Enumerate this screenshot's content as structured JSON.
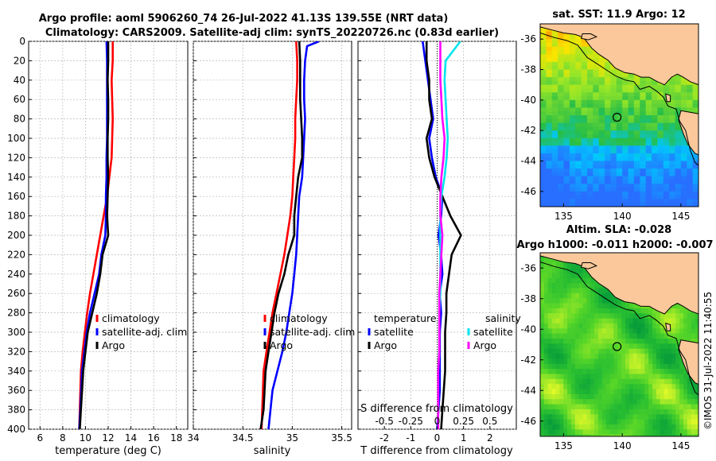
{
  "header": {
    "title_line1": "Argo profile: aoml 5906260_74 26-Jul-2022 41.13S 139.55E (NRT data)",
    "title_line2": "Climatology: CARS2009. Satellite-adj clim: synTS_20220726.nc (0.83d earlier)"
  },
  "stamp": "©IMOS 31-Jul-2022 11:40:55",
  "colors": {
    "climatology": "#ff0000",
    "satellite": "#0000ff",
    "argo": "#000000",
    "sal_satellite": "#00e5ee",
    "sal_argo": "#ff00ff",
    "ocean_land": "#fac89a"
  },
  "chart_data": [
    {
      "type": "line",
      "id": "temperature",
      "xlabel": "temperature (deg C)",
      "ylabel": "",
      "xlim": [
        5,
        19
      ],
      "ylim": [
        0,
        400
      ],
      "y_reversed": true,
      "xticks": [
        6,
        8,
        10,
        12,
        14,
        16,
        18
      ],
      "yticks": [
        0,
        20,
        40,
        60,
        80,
        100,
        120,
        140,
        160,
        180,
        200,
        220,
        240,
        260,
        280,
        300,
        320,
        340,
        360,
        380,
        400
      ],
      "legend": [
        "climatology",
        "satellite-adj. clim",
        "Argo"
      ],
      "series": [
        {
          "name": "climatology",
          "color": "#ff0000",
          "x": [
            12.4,
            12.4,
            12.3,
            12.35,
            12.4,
            12.35,
            12.3,
            12.1,
            11.9,
            11.6,
            11.3,
            11.0,
            10.7,
            10.4,
            10.15,
            9.95,
            9.75,
            9.6,
            9.45
          ],
          "y": [
            0,
            20,
            40,
            60,
            80,
            100,
            120,
            140,
            160,
            180,
            200,
            220,
            240,
            260,
            280,
            300,
            320,
            340,
            400
          ]
        },
        {
          "name": "satellite-adj. clim",
          "color": "#0000ff",
          "x": [
            11.85,
            11.9,
            11.9,
            11.9,
            11.9,
            11.9,
            11.85,
            11.85,
            11.8,
            11.8,
            11.75,
            11.4,
            11.2,
            10.8,
            10.4,
            10.1,
            9.9,
            9.7,
            9.55,
            9.45
          ],
          "y": [
            0,
            20,
            40,
            60,
            80,
            100,
            120,
            140,
            160,
            180,
            200,
            220,
            240,
            260,
            280,
            300,
            320,
            340,
            380,
            400
          ]
        },
        {
          "name": "Argo",
          "color": "#000000",
          "x": [
            12.0,
            12.0,
            11.95,
            12.0,
            12.0,
            11.95,
            11.95,
            12.0,
            11.95,
            11.9,
            12.0,
            11.5,
            11.3,
            11.0,
            10.6,
            10.2,
            10.0,
            9.8,
            9.6,
            9.5
          ],
          "y": [
            0,
            20,
            40,
            60,
            80,
            100,
            120,
            140,
            160,
            180,
            200,
            220,
            240,
            260,
            280,
            300,
            320,
            340,
            380,
            400
          ]
        }
      ]
    },
    {
      "type": "line",
      "id": "salinity",
      "xlabel": "salinity",
      "ylabel": "",
      "xlim": [
        34,
        35.6
      ],
      "ylim": [
        0,
        400
      ],
      "y_reversed": true,
      "xticks": [
        34,
        34.5,
        35,
        35.5
      ],
      "yticks": [
        0,
        20,
        40,
        60,
        80,
        100,
        120,
        140,
        160,
        180,
        200,
        220,
        240,
        260,
        280,
        300,
        320,
        340,
        360,
        380,
        400
      ],
      "legend": [
        "climatology",
        "satellite-adj. clim",
        "Argo"
      ],
      "series": [
        {
          "name": "climatology",
          "color": "#ff0000",
          "x": [
            35.04,
            35.05,
            35.05,
            35.04,
            35.03,
            35.03,
            35.02,
            35.01,
            35.0,
            34.98,
            34.95,
            34.92,
            34.88,
            34.84,
            34.8,
            34.77,
            34.74,
            34.71,
            34.69
          ],
          "y": [
            0,
            20,
            40,
            60,
            80,
            100,
            120,
            140,
            160,
            180,
            200,
            220,
            240,
            260,
            280,
            300,
            320,
            340,
            400
          ]
        },
        {
          "name": "satellite-adj. clim",
          "color": "#0000ff",
          "x": [
            35.27,
            35.15,
            35.13,
            35.12,
            35.12,
            35.13,
            35.12,
            35.11,
            35.1,
            35.07,
            35.06,
            35.05,
            35.04,
            35.02,
            35.0,
            34.97,
            34.94,
            34.9,
            34.85,
            34.8,
            34.76
          ],
          "y": [
            0,
            5,
            20,
            40,
            60,
            80,
            100,
            120,
            140,
            160,
            180,
            200,
            220,
            240,
            260,
            280,
            300,
            320,
            340,
            360,
            400
          ]
        },
        {
          "name": "Argo",
          "color": "#000000",
          "x": [
            35.07,
            35.08,
            35.08,
            35.08,
            35.09,
            35.1,
            35.1,
            35.06,
            35.04,
            35.02,
            35.02,
            34.96,
            34.92,
            34.86,
            34.82,
            34.79,
            34.76,
            34.73,
            34.71,
            34.68
          ],
          "y": [
            0,
            20,
            40,
            60,
            80,
            100,
            120,
            140,
            160,
            180,
            200,
            220,
            240,
            260,
            280,
            300,
            320,
            340,
            380,
            400
          ]
        }
      ]
    },
    {
      "type": "line",
      "id": "difference",
      "xlabel": "T difference from climatology",
      "xlabel_top": "S difference from climatology",
      "xlim": [
        -3,
        3
      ],
      "xlim_s": [
        -0.75,
        0.75
      ],
      "ylim": [
        0,
        400
      ],
      "y_reversed": true,
      "xticks": [
        -2,
        -1,
        0,
        1,
        2
      ],
      "xticks_s": [
        "-0.5",
        "-0.25",
        "0",
        "0.25",
        "0.5"
      ],
      "xticks_s_values": [
        -0.5,
        -0.25,
        0,
        0.25,
        0.5
      ],
      "legend_left_title": "temperature",
      "legend_right_title": "salinity",
      "legend_left": [
        "satellite",
        "Argo"
      ],
      "legend_right": [
        "satellite",
        "Argo"
      ],
      "series": [
        {
          "name": "T satellite",
          "color": "#0000ff",
          "x": [
            -0.55,
            -0.45,
            -0.35,
            -0.25,
            -0.15,
            -0.3,
            -0.2,
            -0.05,
            0.2,
            0.15,
            0.05,
            0.15,
            0.2,
            0.1,
            0.15,
            0.1,
            0.1,
            0.1,
            0.1,
            0.05,
            0.0
          ],
          "y": [
            0,
            20,
            40,
            60,
            80,
            100,
            120,
            140,
            160,
            180,
            200,
            220,
            240,
            260,
            280,
            300,
            320,
            340,
            360,
            380,
            400
          ]
        },
        {
          "name": "T Argo",
          "color": "#000000",
          "x": [
            -0.4,
            -0.4,
            -0.3,
            -0.3,
            -0.2,
            -0.4,
            -0.3,
            -0.1,
            0.2,
            0.5,
            0.9,
            0.55,
            0.45,
            0.35,
            0.35,
            0.3,
            0.3,
            0.3,
            0.25,
            0.2,
            0.15
          ],
          "y": [
            0,
            20,
            40,
            60,
            80,
            100,
            120,
            140,
            160,
            180,
            200,
            220,
            240,
            260,
            280,
            300,
            320,
            340,
            360,
            380,
            400
          ]
        },
        {
          "name": "S satellite",
          "color": "#00e5ee",
          "x": [
            0.22,
            0.08,
            0.07,
            0.08,
            0.09,
            0.1,
            0.09,
            0.07,
            0.04,
            0.03,
            0.03,
            0.03,
            0.03,
            0.03,
            0.02,
            0.02,
            0.02,
            0.01,
            0.01,
            0.01,
            0.01
          ],
          "y": [
            0,
            20,
            40,
            60,
            80,
            100,
            120,
            140,
            160,
            180,
            200,
            220,
            240,
            260,
            280,
            300,
            320,
            340,
            360,
            380,
            400
          ]
        },
        {
          "name": "S Argo",
          "color": "#ff00ff",
          "x": [
            0.03,
            0.03,
            0.03,
            0.04,
            0.05,
            0.07,
            0.06,
            0.04,
            0.03,
            0.03,
            0.05,
            0.04,
            0.03,
            0.02,
            0.02,
            0.02,
            0.02,
            0.01,
            0.01,
            0.01,
            0.01
          ],
          "y": [
            0,
            20,
            40,
            60,
            80,
            100,
            120,
            140,
            160,
            180,
            200,
            220,
            240,
            260,
            280,
            300,
            320,
            340,
            360,
            380,
            400
          ]
        }
      ]
    },
    {
      "type": "heatmap",
      "id": "sst_map",
      "title": "sat. SST: 11.9 Argo: 12",
      "xlim": [
        133,
        146.5
      ],
      "ylim": [
        -47,
        -35
      ],
      "xticks": [
        135,
        140,
        145
      ],
      "yticks": [
        -36,
        -38,
        -40,
        -42,
        -44,
        -46
      ],
      "argo_position": [
        139.55,
        -41.13
      ]
    },
    {
      "type": "heatmap",
      "id": "sla_map",
      "title_line1": "Altim. SLA: -0.028",
      "title_line2": "Argo h1000: -0.011 h2000: -0.007",
      "xlim": [
        133,
        146.5
      ],
      "ylim": [
        -47,
        -35
      ],
      "xticks": [
        135,
        140,
        145
      ],
      "yticks": [
        -36,
        -38,
        -40,
        -42,
        -44,
        -46
      ],
      "argo_position": [
        139.55,
        -41.13
      ]
    }
  ]
}
